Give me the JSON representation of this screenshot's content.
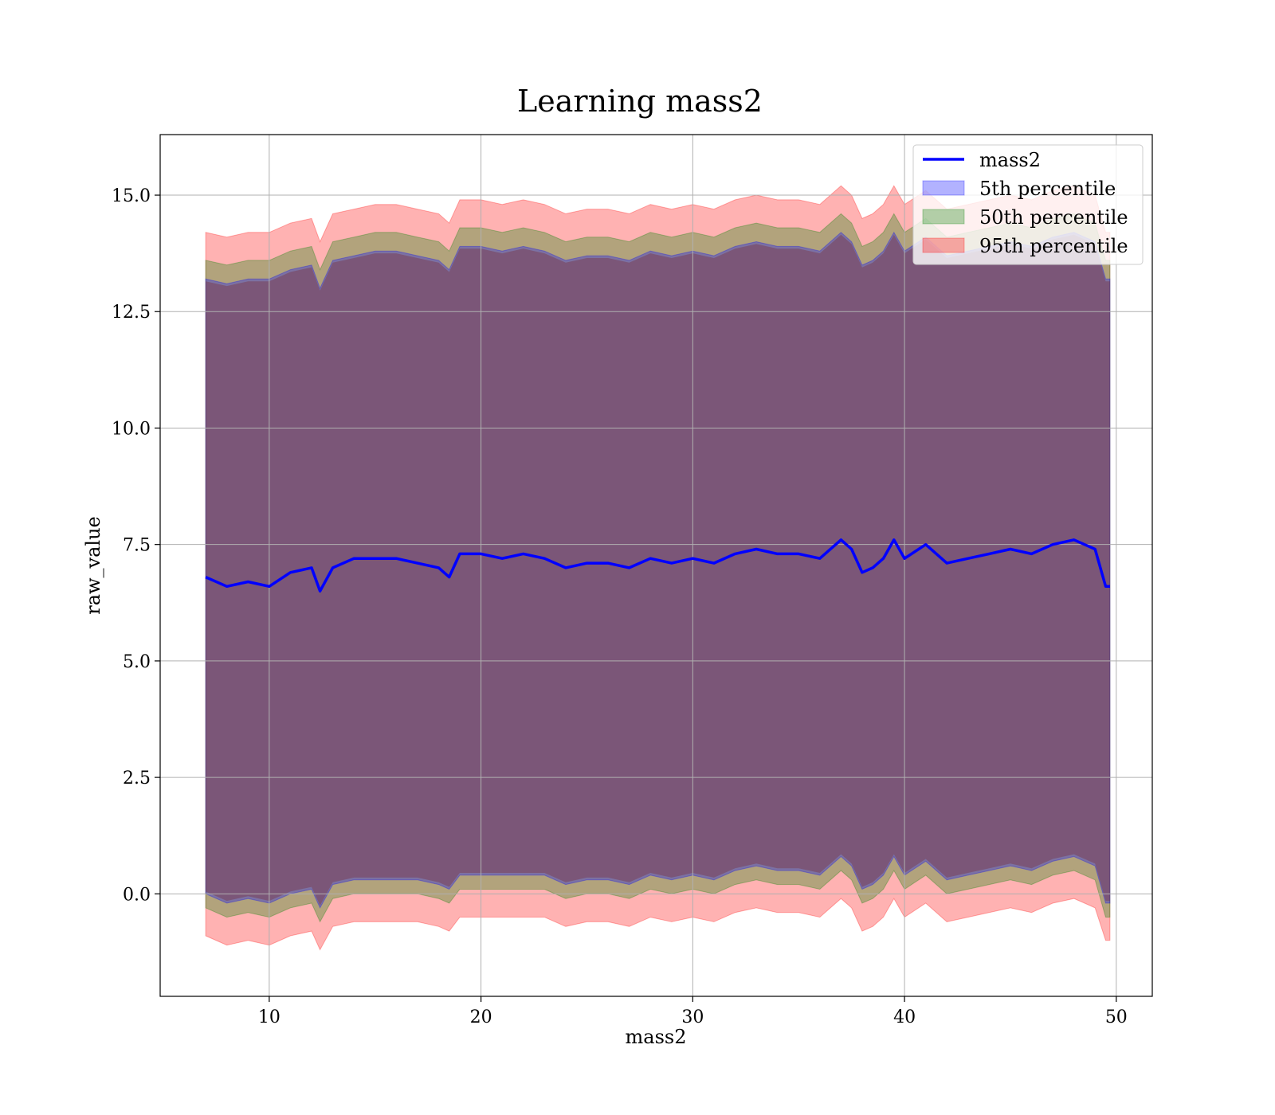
{
  "chart_data": {
    "type": "area",
    "title": "Learning mass2",
    "xlabel": "mass2",
    "ylabel": "raw_value",
    "xlim": [
      4.85,
      51.7
    ],
    "ylim": [
      -2.2,
      16.3
    ],
    "x_ticks": [
      10,
      20,
      30,
      40,
      50
    ],
    "x_tick_labels": [
      "10",
      "20",
      "30",
      "40",
      "50"
    ],
    "y_ticks": [
      0.0,
      2.5,
      5.0,
      7.5,
      10.0,
      12.5,
      15.0
    ],
    "y_tick_labels": [
      "0.0",
      "2.5",
      "5.0",
      "7.5",
      "10.0",
      "12.5",
      "15.0"
    ],
    "grid": true,
    "legend_position": "top-right",
    "x": [
      7.0,
      8.0,
      9.0,
      10.0,
      11.0,
      12.0,
      12.4,
      13.0,
      14.0,
      15.0,
      16.0,
      17.0,
      18.0,
      18.5,
      19.0,
      20.0,
      21.0,
      22.0,
      23.0,
      24.0,
      25.0,
      26.0,
      27.0,
      28.0,
      29.0,
      30.0,
      31.0,
      32.0,
      33.0,
      34.0,
      35.0,
      36.0,
      37.0,
      37.5,
      38.0,
      38.5,
      39.0,
      39.5,
      40.0,
      41.0,
      42.0,
      43.0,
      44.0,
      45.0,
      46.0,
      47.0,
      48.0,
      48.5,
      49.0,
      49.5,
      49.7
    ],
    "series": [
      {
        "name": "mass2",
        "kind": "line",
        "color": "#0000ff",
        "values": [
          6.8,
          6.6,
          6.7,
          6.6,
          6.9,
          7.0,
          6.5,
          7.0,
          7.2,
          7.2,
          7.2,
          7.1,
          7.0,
          6.8,
          7.3,
          7.3,
          7.2,
          7.3,
          7.2,
          7.0,
          7.1,
          7.1,
          7.0,
          7.2,
          7.1,
          7.2,
          7.1,
          7.3,
          7.4,
          7.3,
          7.3,
          7.2,
          7.6,
          7.4,
          6.9,
          7.0,
          7.2,
          7.6,
          7.2,
          7.5,
          7.1,
          7.2,
          7.3,
          7.4,
          7.3,
          7.5,
          7.6,
          7.5,
          7.4,
          6.6,
          6.6
        ]
      },
      {
        "name": "5th percentile",
        "kind": "band",
        "color": "#0000ff",
        "lower": [
          0.0,
          -0.2,
          -0.1,
          -0.2,
          0.0,
          0.1,
          -0.3,
          0.2,
          0.3,
          0.3,
          0.3,
          0.3,
          0.2,
          0.1,
          0.4,
          0.4,
          0.4,
          0.4,
          0.4,
          0.2,
          0.3,
          0.3,
          0.2,
          0.4,
          0.3,
          0.4,
          0.3,
          0.5,
          0.6,
          0.5,
          0.5,
          0.4,
          0.8,
          0.6,
          0.1,
          0.2,
          0.4,
          0.8,
          0.4,
          0.7,
          0.3,
          0.4,
          0.5,
          0.6,
          0.5,
          0.7,
          0.8,
          0.7,
          0.6,
          -0.2,
          -0.2
        ],
        "upper": [
          13.2,
          13.1,
          13.2,
          13.2,
          13.4,
          13.5,
          13.0,
          13.6,
          13.7,
          13.8,
          13.8,
          13.7,
          13.6,
          13.4,
          13.9,
          13.9,
          13.8,
          13.9,
          13.8,
          13.6,
          13.7,
          13.7,
          13.6,
          13.8,
          13.7,
          13.8,
          13.7,
          13.9,
          14.0,
          13.9,
          13.9,
          13.8,
          14.2,
          14.0,
          13.5,
          13.6,
          13.8,
          14.2,
          13.8,
          14.1,
          13.7,
          13.8,
          13.9,
          14.0,
          13.9,
          14.1,
          14.2,
          14.1,
          14.0,
          13.2,
          13.2
        ]
      },
      {
        "name": "50th percentile",
        "kind": "band",
        "color": "#008000",
        "lower": [
          -0.3,
          -0.5,
          -0.4,
          -0.5,
          -0.3,
          -0.2,
          -0.6,
          -0.1,
          0.0,
          0.0,
          0.0,
          0.0,
          -0.1,
          -0.2,
          0.1,
          0.1,
          0.1,
          0.1,
          0.1,
          -0.1,
          0.0,
          0.0,
          -0.1,
          0.1,
          0.0,
          0.1,
          0.0,
          0.2,
          0.3,
          0.2,
          0.2,
          0.1,
          0.5,
          0.3,
          -0.2,
          -0.1,
          0.1,
          0.5,
          0.1,
          0.4,
          0.0,
          0.1,
          0.2,
          0.3,
          0.2,
          0.4,
          0.5,
          0.4,
          0.3,
          -0.5,
          -0.5
        ],
        "upper": [
          13.6,
          13.5,
          13.6,
          13.6,
          13.8,
          13.9,
          13.4,
          14.0,
          14.1,
          14.2,
          14.2,
          14.1,
          14.0,
          13.8,
          14.3,
          14.3,
          14.2,
          14.3,
          14.2,
          14.0,
          14.1,
          14.1,
          14.0,
          14.2,
          14.1,
          14.2,
          14.1,
          14.3,
          14.4,
          14.3,
          14.3,
          14.2,
          14.6,
          14.4,
          13.9,
          14.0,
          14.2,
          14.6,
          14.2,
          14.5,
          14.1,
          14.2,
          14.3,
          14.4,
          14.3,
          14.5,
          14.6,
          14.5,
          14.4,
          13.6,
          13.6
        ]
      },
      {
        "name": "95th percentile",
        "kind": "band",
        "color": "#ff0000",
        "lower": [
          -0.9,
          -1.1,
          -1.0,
          -1.1,
          -0.9,
          -0.8,
          -1.2,
          -0.7,
          -0.6,
          -0.6,
          -0.6,
          -0.6,
          -0.7,
          -0.8,
          -0.5,
          -0.5,
          -0.5,
          -0.5,
          -0.5,
          -0.7,
          -0.6,
          -0.6,
          -0.7,
          -0.5,
          -0.6,
          -0.5,
          -0.6,
          -0.4,
          -0.3,
          -0.4,
          -0.4,
          -0.5,
          -0.1,
          -0.3,
          -0.8,
          -0.7,
          -0.5,
          -0.1,
          -0.5,
          -0.2,
          -0.6,
          -0.5,
          -0.4,
          -0.3,
          -0.4,
          -0.2,
          -0.1,
          -0.2,
          -0.3,
          -1.0,
          -1.0
        ],
        "upper": [
          14.2,
          14.1,
          14.2,
          14.2,
          14.4,
          14.5,
          14.0,
          14.6,
          14.7,
          14.8,
          14.8,
          14.7,
          14.6,
          14.4,
          14.9,
          14.9,
          14.8,
          14.9,
          14.8,
          14.6,
          14.7,
          14.7,
          14.6,
          14.8,
          14.7,
          14.8,
          14.7,
          14.9,
          15.0,
          14.9,
          14.9,
          14.8,
          15.2,
          15.0,
          14.5,
          14.6,
          14.8,
          15.2,
          14.8,
          15.1,
          14.7,
          14.8,
          14.9,
          15.0,
          14.9,
          15.1,
          15.2,
          15.1,
          15.0,
          14.2,
          14.2
        ]
      }
    ]
  }
}
